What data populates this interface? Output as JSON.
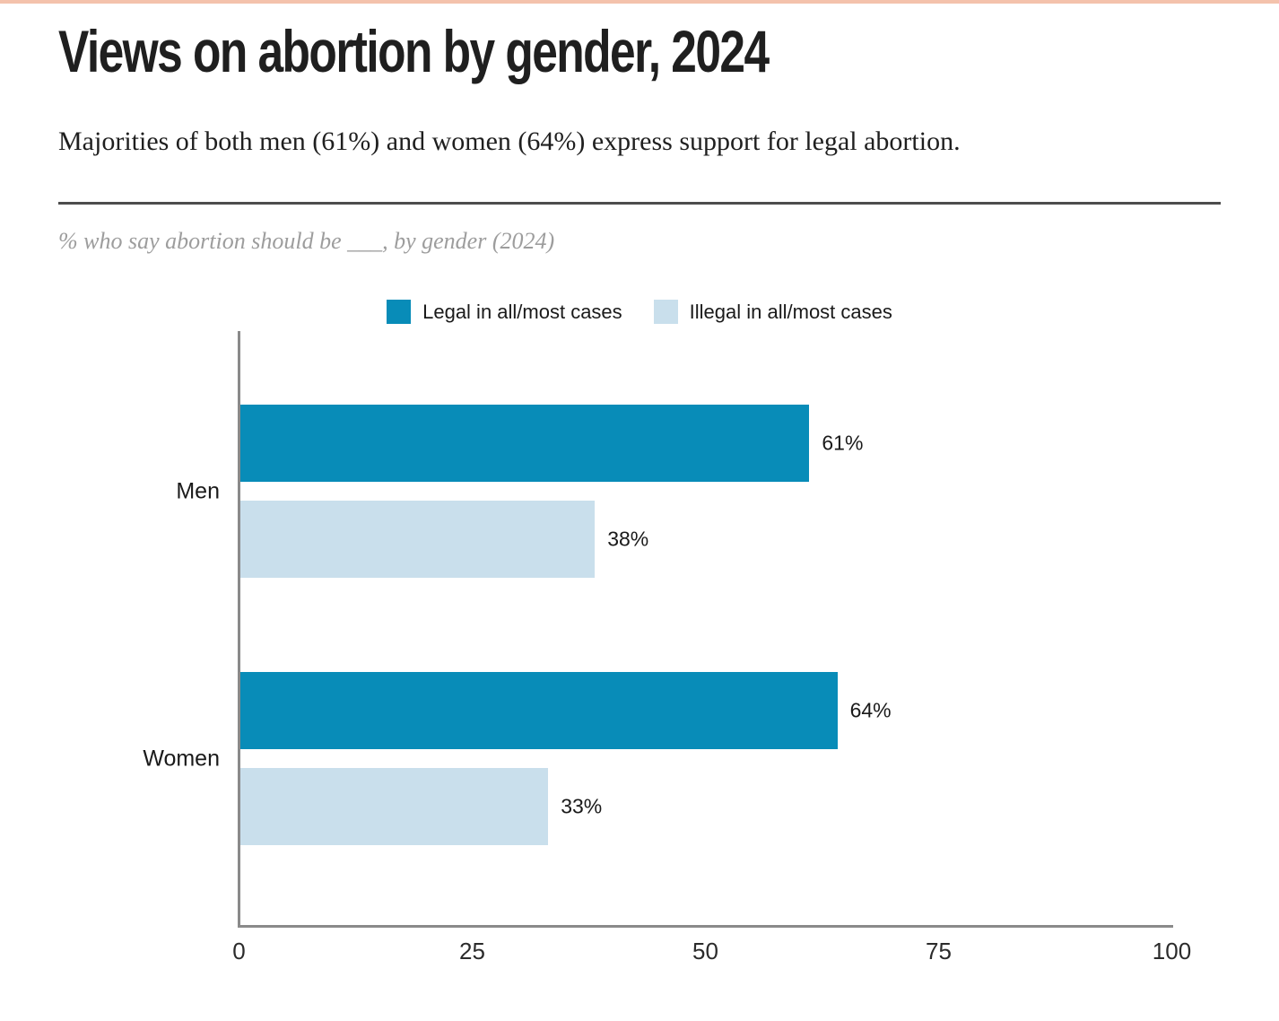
{
  "page": {
    "title": "Views on abortion by gender, 2024",
    "subtitle": "Majorities of both men (61%) and women (64%) express support for legal abortion.",
    "note": "% who say abortion should be ___, by gender (2024)",
    "accent_top_color": "#f4c2ac",
    "divider_color": "#4d4d4d"
  },
  "chart_data": {
    "type": "bar",
    "orientation": "horizontal",
    "title": "% who say abortion should be ___, by gender (2024)",
    "categories": [
      "Men",
      "Women"
    ],
    "series": [
      {
        "name": "Legal in all/most cases",
        "color": "#088cb8",
        "values": [
          61,
          64
        ]
      },
      {
        "name": "Illegal in all/most cases",
        "color": "#c9dfec",
        "values": [
          38,
          33
        ]
      }
    ],
    "value_suffix": "%",
    "xlabel": "",
    "ylabel": "",
    "xlim": [
      0,
      100
    ],
    "x_ticks": [
      "0",
      "25",
      "50",
      "75",
      "100"
    ],
    "legend_position": "top-center",
    "grid": false,
    "axis_color": "#8a8a8a"
  }
}
